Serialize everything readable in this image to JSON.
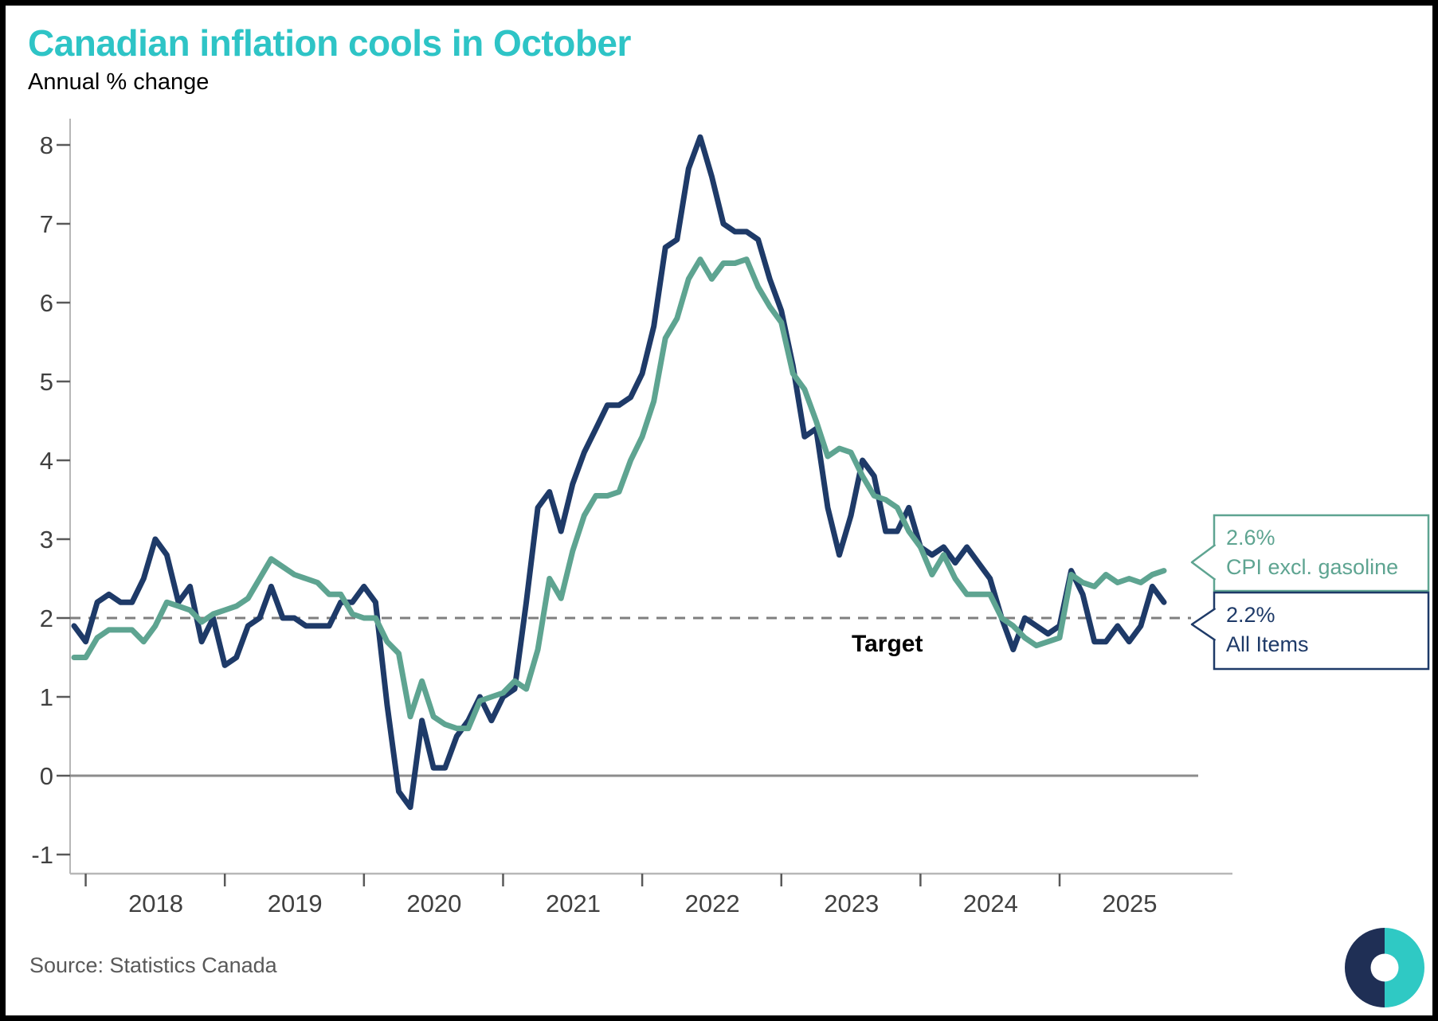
{
  "title": "Canadian inflation cools in October",
  "subtitle": "Annual % change",
  "source": "Source: Statistics Canada",
  "target_label": "Target",
  "callouts": {
    "gasoline": {
      "value": "2.6%",
      "label": "CPI excl. gasoline"
    },
    "all_items": {
      "value": "2.2%",
      "label": "All Items"
    }
  },
  "colors": {
    "title": "#2EC4C6",
    "all_items_line": "#1E3A68",
    "ex_gasoline_line": "#5EA491",
    "target_dash": "#7F7F7F",
    "zero_line": "#8C8C8C",
    "axis_line": "#B7B7B7",
    "tick_mark": "#595959",
    "tick_label": "#404040",
    "source_text": "#595959",
    "logo_navy": "#1F2F55",
    "logo_teal": "#2FC9C4"
  },
  "chart_data": {
    "type": "line",
    "title": "Canadian inflation cools in October",
    "ylabel": "Annual % change",
    "x_start_month": "2017-12",
    "x_end_month": "2025-10",
    "x_tick_labels": [
      "2018",
      "2019",
      "2020",
      "2021",
      "2022",
      "2023",
      "2024",
      "2025"
    ],
    "y_ticks": [
      -1,
      0,
      1,
      2,
      3,
      4,
      5,
      6,
      7,
      8
    ],
    "ylim": [
      -1.3,
      8.35
    ],
    "grid": false,
    "target_line_value": 2,
    "legend_position": "right-callouts",
    "series": [
      {
        "name": "All Items",
        "end_value_label": "2.2%",
        "values": [
          1.9,
          1.7,
          2.2,
          2.3,
          2.2,
          2.2,
          2.5,
          3.0,
          2.8,
          2.2,
          2.4,
          1.7,
          2.0,
          1.4,
          1.5,
          1.9,
          2.0,
          2.4,
          2.0,
          2.0,
          1.9,
          1.9,
          1.9,
          2.2,
          2.2,
          2.4,
          2.2,
          0.9,
          -0.2,
          -0.4,
          0.7,
          0.1,
          0.1,
          0.5,
          0.7,
          1.0,
          0.7,
          1.0,
          1.1,
          2.2,
          3.4,
          3.6,
          3.1,
          3.7,
          4.1,
          4.4,
          4.7,
          4.7,
          4.8,
          5.1,
          5.7,
          6.7,
          6.8,
          7.7,
          8.1,
          7.6,
          7.0,
          6.9,
          6.9,
          6.8,
          6.3,
          5.9,
          5.2,
          4.3,
          4.4,
          3.4,
          2.8,
          3.3,
          4.0,
          3.8,
          3.1,
          3.1,
          3.4,
          2.9,
          2.8,
          2.9,
          2.7,
          2.9,
          2.7,
          2.5,
          2.0,
          1.6,
          2.0,
          1.9,
          1.8,
          1.9,
          2.6,
          2.3,
          1.7,
          1.7,
          1.9,
          1.7,
          1.9,
          2.4,
          2.2
        ]
      },
      {
        "name": "CPI excl. gasoline",
        "end_value_label": "2.6%",
        "values": [
          1.5,
          1.5,
          1.75,
          1.85,
          1.85,
          1.85,
          1.7,
          1.9,
          2.2,
          2.15,
          2.1,
          1.95,
          2.05,
          2.1,
          2.15,
          2.25,
          2.5,
          2.75,
          2.65,
          2.55,
          2.5,
          2.45,
          2.3,
          2.3,
          2.05,
          2.0,
          2.0,
          1.7,
          1.55,
          0.75,
          1.2,
          0.75,
          0.65,
          0.6,
          0.6,
          0.95,
          1.0,
          1.05,
          1.2,
          1.1,
          1.6,
          2.5,
          2.25,
          2.85,
          3.3,
          3.55,
          3.55,
          3.6,
          4.0,
          4.3,
          4.75,
          5.55,
          5.8,
          6.3,
          6.55,
          6.3,
          6.5,
          6.5,
          6.55,
          6.2,
          5.95,
          5.75,
          5.1,
          4.9,
          4.5,
          4.05,
          4.15,
          4.1,
          3.8,
          3.55,
          3.5,
          3.4,
          3.1,
          2.9,
          2.55,
          2.8,
          2.5,
          2.3,
          2.3,
          2.3,
          2.0,
          1.9,
          1.75,
          1.65,
          1.7,
          1.75,
          2.55,
          2.45,
          2.4,
          2.55,
          2.45,
          2.5,
          2.45,
          2.55,
          2.6
        ]
      }
    ]
  }
}
